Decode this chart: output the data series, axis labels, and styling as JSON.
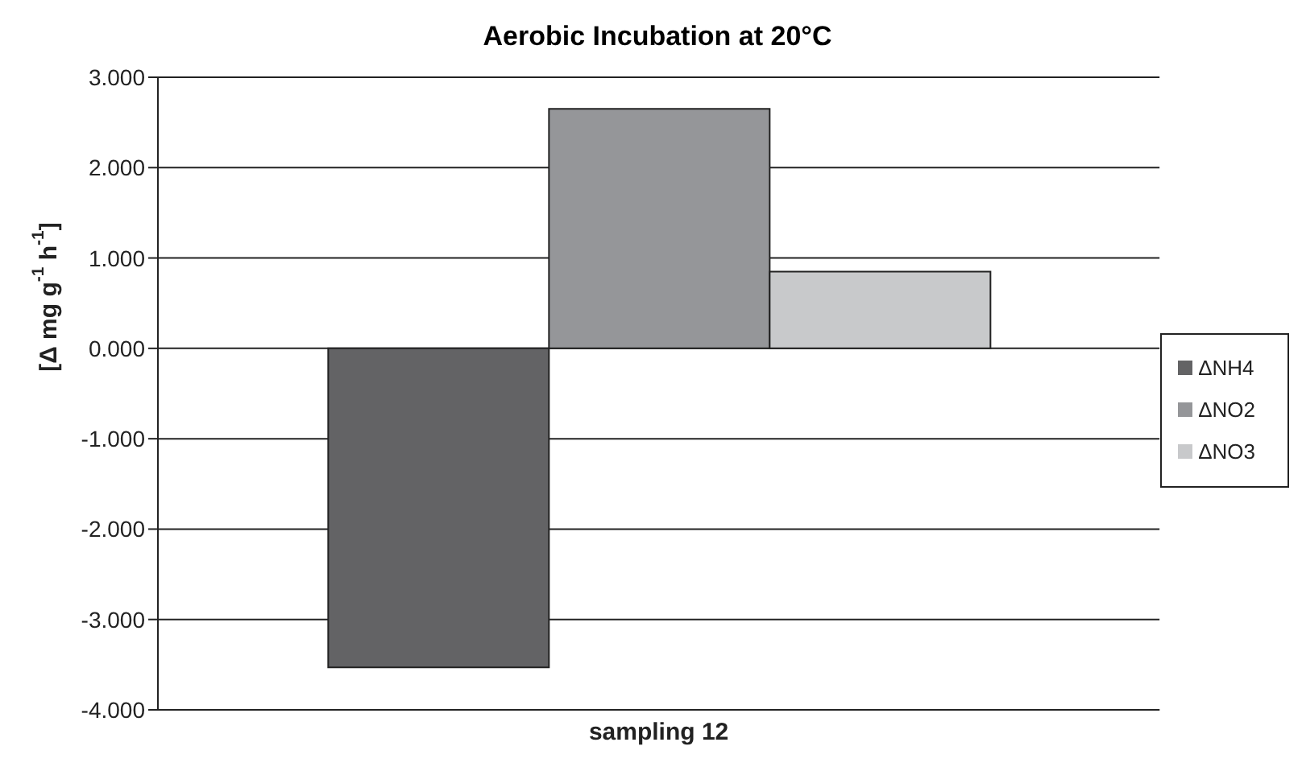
{
  "chart_data": {
    "type": "bar",
    "title": "Aerobic Incubation at 20°C",
    "ylabel": "[Δ mg g$^{-1}$ h$^{-1}$]",
    "categories": [
      "sampling 12"
    ],
    "series": [
      {
        "name": "ΔNH4",
        "color": "#636365",
        "values": [
          -3.53
        ]
      },
      {
        "name": "ΔNO2",
        "color": "#959699",
        "values": [
          2.65
        ]
      },
      {
        "name": "ΔNO3",
        "color": "#c8c9cb",
        "values": [
          0.85
        ]
      }
    ],
    "ylim": [
      -4,
      3
    ],
    "yticks": [
      {
        "value": -4,
        "label": "-4.000"
      },
      {
        "value": -3,
        "label": "-3.000"
      },
      {
        "value": -2,
        "label": "-2.000"
      },
      {
        "value": -1,
        "label": "-1.000"
      },
      {
        "value": 0,
        "label": "0.000"
      },
      {
        "value": 1,
        "label": "1.000"
      },
      {
        "value": 2,
        "label": "2.000"
      },
      {
        "value": 3,
        "label": "3.000"
      }
    ],
    "grid": "y",
    "legend": "right"
  }
}
